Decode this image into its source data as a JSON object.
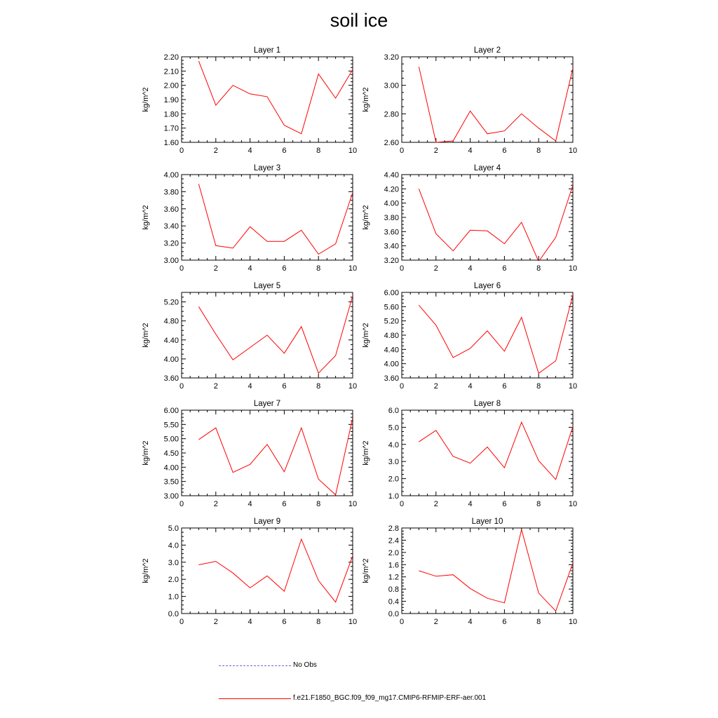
{
  "figure_title": "soil ice",
  "colors": {
    "model_line": "#ff0000",
    "obs_line": "#6a6ad8",
    "axis": "#000000"
  },
  "legend": {
    "obs_label": "No Obs",
    "model_label": "f.e21.F1850_BGC.f09_f09_mg17.CMIP6-RFMIP-ERF-aer.001"
  },
  "chart_data": [
    {
      "type": "line",
      "title": "Layer 1",
      "ylabel": "kg/m^2",
      "xlim": [
        0,
        10
      ],
      "ylim": [
        1.6,
        2.2
      ],
      "xticks": [
        0,
        2,
        4,
        6,
        8,
        10
      ],
      "xtick_labels": [
        "0",
        "2",
        "4",
        "6",
        "8",
        "10"
      ],
      "yticks": [
        1.6,
        1.7,
        1.8,
        1.9,
        2.0,
        2.1,
        2.2
      ],
      "ytick_labels": [
        "1.60",
        "1.70",
        "1.80",
        "1.90",
        "2.00",
        "2.10",
        "2.20"
      ],
      "x": [
        1,
        2,
        3,
        4,
        5,
        6,
        7,
        8,
        9,
        10
      ],
      "series": [
        {
          "values": [
            2.17,
            1.86,
            2.0,
            1.94,
            1.92,
            1.72,
            1.66,
            2.08,
            1.91,
            2.11
          ]
        }
      ]
    },
    {
      "type": "line",
      "title": "Layer 2",
      "ylabel": "kg/m^2",
      "xlim": [
        0,
        10
      ],
      "ylim": [
        2.6,
        3.2
      ],
      "xticks": [
        0,
        2,
        4,
        6,
        8,
        10
      ],
      "xtick_labels": [
        "0",
        "2",
        "4",
        "6",
        "8",
        "10"
      ],
      "yticks": [
        2.6,
        2.8,
        3.0,
        3.2
      ],
      "ytick_labels": [
        "2.60",
        "2.80",
        "3.00",
        "3.20"
      ],
      "x": [
        1,
        2,
        3,
        4,
        5,
        6,
        7,
        8,
        9,
        10
      ],
      "series": [
        {
          "values": [
            3.13,
            2.6,
            2.61,
            2.82,
            2.66,
            2.68,
            2.8,
            2.7,
            2.61,
            3.12
          ]
        }
      ]
    },
    {
      "type": "line",
      "title": "Layer 3",
      "ylabel": "kg/m^2",
      "xlim": [
        0,
        10
      ],
      "ylim": [
        3.0,
        4.0
      ],
      "xticks": [
        0,
        2,
        4,
        6,
        8,
        10
      ],
      "xtick_labels": [
        "0",
        "2",
        "4",
        "6",
        "8",
        "10"
      ],
      "yticks": [
        3.0,
        3.2,
        3.4,
        3.6,
        3.8,
        4.0
      ],
      "ytick_labels": [
        "3.00",
        "3.20",
        "3.40",
        "3.60",
        "3.80",
        "4.00"
      ],
      "x": [
        1,
        2,
        3,
        4,
        5,
        6,
        7,
        8,
        9,
        10
      ],
      "series": [
        {
          "values": [
            3.89,
            3.17,
            3.14,
            3.39,
            3.22,
            3.22,
            3.35,
            3.07,
            3.19,
            3.79
          ]
        }
      ]
    },
    {
      "type": "line",
      "title": "Layer 4",
      "ylabel": "kg/m^2",
      "xlim": [
        0,
        10
      ],
      "ylim": [
        3.2,
        4.4
      ],
      "xticks": [
        0,
        2,
        4,
        6,
        8,
        10
      ],
      "xtick_labels": [
        "0",
        "2",
        "4",
        "6",
        "8",
        "10"
      ],
      "yticks": [
        3.2,
        3.4,
        3.6,
        3.8,
        4.0,
        4.2,
        4.4
      ],
      "ytick_labels": [
        "3.20",
        "3.40",
        "3.60",
        "3.80",
        "4.00",
        "4.20",
        "4.40"
      ],
      "x": [
        1,
        2,
        3,
        4,
        5,
        6,
        7,
        8,
        9,
        10
      ],
      "series": [
        {
          "values": [
            4.2,
            3.57,
            3.33,
            3.62,
            3.61,
            3.43,
            3.73,
            3.18,
            3.52,
            4.25
          ]
        }
      ]
    },
    {
      "type": "line",
      "title": "Layer 5",
      "ylabel": "kg/m^2",
      "xlim": [
        0,
        10
      ],
      "ylim": [
        3.6,
        5.4
      ],
      "xticks": [
        0,
        2,
        4,
        6,
        8,
        10
      ],
      "xtick_labels": [
        "0",
        "2",
        "4",
        "6",
        "8",
        "10"
      ],
      "yticks": [
        3.6,
        4.0,
        4.4,
        4.8,
        5.2
      ],
      "ytick_labels": [
        "3.60",
        "4.00",
        "4.40",
        "4.80",
        "5.20"
      ],
      "x": [
        1,
        2,
        3,
        4,
        5,
        6,
        7,
        8,
        9,
        10
      ],
      "series": [
        {
          "values": [
            5.1,
            4.52,
            3.98,
            4.24,
            4.5,
            4.12,
            4.68,
            3.7,
            4.07,
            5.33
          ]
        }
      ]
    },
    {
      "type": "line",
      "title": "Layer 6",
      "ylabel": "kg/m^2",
      "xlim": [
        0,
        10
      ],
      "ylim": [
        3.6,
        6.0
      ],
      "xticks": [
        0,
        2,
        4,
        6,
        8,
        10
      ],
      "xtick_labels": [
        "0",
        "2",
        "4",
        "6",
        "8",
        "10"
      ],
      "yticks": [
        3.6,
        4.0,
        4.4,
        4.8,
        5.2,
        5.6,
        6.0
      ],
      "ytick_labels": [
        "3.60",
        "4.00",
        "4.40",
        "4.80",
        "5.20",
        "5.60",
        "6.00"
      ],
      "x": [
        1,
        2,
        3,
        4,
        5,
        6,
        7,
        8,
        9,
        10
      ],
      "series": [
        {
          "values": [
            5.64,
            5.08,
            4.17,
            4.43,
            4.92,
            4.35,
            5.3,
            3.73,
            4.08,
            5.93
          ]
        }
      ]
    },
    {
      "type": "line",
      "title": "Layer 7",
      "ylabel": "kg/m^2",
      "xlim": [
        0,
        10
      ],
      "ylim": [
        3.0,
        6.0
      ],
      "xticks": [
        0,
        2,
        4,
        6,
        8,
        10
      ],
      "xtick_labels": [
        "0",
        "2",
        "4",
        "6",
        "8",
        "10"
      ],
      "yticks": [
        3.0,
        3.5,
        4.0,
        4.5,
        5.0,
        5.5,
        6.0
      ],
      "ytick_labels": [
        "3.00",
        "3.50",
        "4.00",
        "4.50",
        "5.00",
        "5.50",
        "6.00"
      ],
      "x": [
        1,
        2,
        3,
        4,
        5,
        6,
        7,
        8,
        9,
        10
      ],
      "series": [
        {
          "values": [
            4.97,
            5.38,
            3.82,
            4.1,
            4.8,
            3.84,
            5.38,
            3.58,
            3.03,
            5.73
          ]
        }
      ]
    },
    {
      "type": "line",
      "title": "Layer 8",
      "ylabel": "kg/m^2",
      "xlim": [
        0,
        10
      ],
      "ylim": [
        1.0,
        6.0
      ],
      "xticks": [
        0,
        2,
        4,
        6,
        8,
        10
      ],
      "xtick_labels": [
        "0",
        "2",
        "4",
        "6",
        "8",
        "10"
      ],
      "yticks": [
        1.0,
        2.0,
        3.0,
        4.0,
        5.0,
        6.0
      ],
      "ytick_labels": [
        "1.0",
        "2.0",
        "3.0",
        "4.0",
        "5.0",
        "6.0"
      ],
      "x": [
        1,
        2,
        3,
        4,
        5,
        6,
        7,
        8,
        9,
        10
      ],
      "series": [
        {
          "values": [
            4.15,
            4.82,
            3.3,
            2.9,
            3.85,
            2.63,
            5.3,
            3.05,
            1.95,
            5.05
          ]
        }
      ]
    },
    {
      "type": "line",
      "title": "Layer 9",
      "ylabel": "kg/m^2",
      "xlim": [
        0,
        10
      ],
      "ylim": [
        0.0,
        5.0
      ],
      "xticks": [
        0,
        2,
        4,
        6,
        8,
        10
      ],
      "xtick_labels": [
        "0",
        "2",
        "4",
        "6",
        "8",
        "10"
      ],
      "yticks": [
        0.0,
        1.0,
        2.0,
        3.0,
        4.0,
        5.0
      ],
      "ytick_labels": [
        "0.0",
        "1.0",
        "2.0",
        "3.0",
        "4.0",
        "5.0"
      ],
      "x": [
        1,
        2,
        3,
        4,
        5,
        6,
        7,
        8,
        9,
        10
      ],
      "series": [
        {
          "values": [
            2.85,
            3.05,
            2.37,
            1.5,
            2.2,
            1.3,
            4.35,
            1.93,
            0.67,
            3.37
          ]
        }
      ]
    },
    {
      "type": "line",
      "title": "Layer 10",
      "ylabel": "kg/m^2",
      "xlim": [
        0,
        10
      ],
      "ylim": [
        0.0,
        2.8
      ],
      "xticks": [
        0,
        2,
        4,
        6,
        8,
        10
      ],
      "xtick_labels": [
        "0",
        "2",
        "4",
        "6",
        "8",
        "10"
      ],
      "yticks": [
        0.0,
        0.4,
        0.8,
        1.2,
        1.6,
        2.0,
        2.4,
        2.8
      ],
      "ytick_labels": [
        "0.0",
        "0.4",
        "0.8",
        "1.2",
        "1.6",
        "2.0",
        "2.4",
        "2.8"
      ],
      "x": [
        1,
        2,
        3,
        4,
        5,
        6,
        7,
        8,
        9,
        10
      ],
      "series": [
        {
          "values": [
            1.4,
            1.22,
            1.27,
            0.82,
            0.5,
            0.35,
            2.75,
            0.67,
            0.08,
            1.65
          ]
        }
      ]
    }
  ]
}
